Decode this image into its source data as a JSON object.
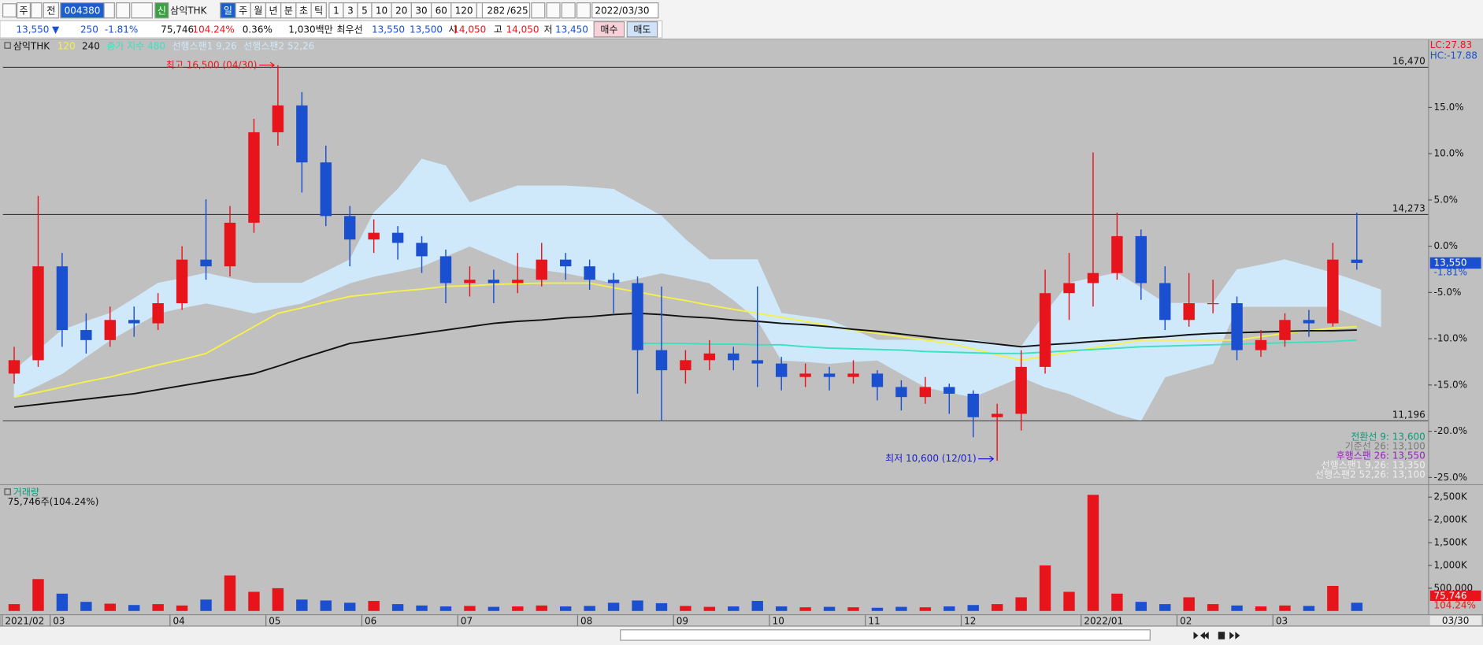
{
  "toolbar": {
    "period": "주",
    "market": "전",
    "code": "004380",
    "badge": "신",
    "name": "삼익THK",
    "intervals": [
      "일",
      "주",
      "월",
      "년",
      "분",
      "초",
      "틱"
    ],
    "minutes": [
      "1",
      "3",
      "5",
      "10",
      "20",
      "30",
      "60",
      "120"
    ],
    "count": "282",
    "total": "/625",
    "date": "2022/03/30"
  },
  "quote": {
    "price": "13,550",
    "arrow": "▼",
    "change": "250",
    "change_pct": "-1.81%",
    "volume": "75,746",
    "volume_pct": "104.24%",
    "turnover": "0.36%",
    "amount": "1,030백만",
    "best_label": "최우선",
    "ask": "13,550",
    "bid": "13,500",
    "open_label": "시",
    "open": "14,050",
    "high_label": "고",
    "high": "14,050",
    "low_label": "저",
    "low": "13,450",
    "buy": "매수",
    "sell": "매도"
  },
  "chart_data": [
    {
      "type": "candlestick",
      "title": "삼익THK",
      "corner": [
        "LC:27.83",
        "HC:-17.88"
      ],
      "up_color": "#e8141b",
      "down_color": "#1a4fd0",
      "ichimoku_cloud": true,
      "categories": [
        "2021/02",
        null,
        "03",
        null,
        null,
        null,
        null,
        "04",
        null,
        null,
        null,
        "05",
        null,
        null,
        null,
        "06",
        null,
        null,
        null,
        "07",
        null,
        null,
        null,
        null,
        "08",
        null,
        null,
        null,
        "09",
        null,
        null,
        null,
        "10",
        null,
        null,
        null,
        "11",
        null,
        null,
        null,
        "12",
        null,
        null,
        null,
        null,
        "2022/01",
        null,
        null,
        null,
        "02",
        null,
        null,
        null,
        "03",
        null,
        null,
        null,
        null
      ],
      "open": [
        11900,
        12100,
        13500,
        12550,
        12400,
        12700,
        12650,
        12950,
        13600,
        13500,
        14150,
        15500,
        15900,
        15050,
        14250,
        13900,
        14000,
        13850,
        13650,
        13250,
        13300,
        13250,
        13300,
        13600,
        13500,
        13300,
        13250,
        12250,
        11950,
        12100,
        12200,
        12100,
        12050,
        11850,
        11900,
        11850,
        11900,
        11700,
        11550,
        11700,
        11600,
        11250,
        11300,
        12000,
        13100,
        13250,
        13400,
        13950,
        13250,
        12700,
        12950,
        12950,
        12250,
        12400,
        12700,
        12650,
        13600,
        null
      ],
      "high": [
        12300,
        14550,
        13700,
        12800,
        12900,
        12900,
        13100,
        13800,
        14500,
        14400,
        15700,
        16500,
        16100,
        15300,
        14400,
        14200,
        14100,
        13950,
        13750,
        13500,
        13450,
        13700,
        13850,
        13700,
        13600,
        13400,
        13350,
        13200,
        12250,
        12400,
        12300,
        13200,
        12150,
        12050,
        12000,
        12100,
        11950,
        11800,
        11850,
        11750,
        11650,
        11450,
        12250,
        13450,
        13700,
        15200,
        14300,
        14050,
        13500,
        13400,
        13300,
        13050,
        12550,
        12800,
        12850,
        13850,
        14300,
        null
      ],
      "low": [
        11750,
        12000,
        12300,
        12200,
        12300,
        12450,
        12550,
        12850,
        13300,
        13350,
        14000,
        15300,
        14600,
        14100,
        13500,
        13700,
        13600,
        13400,
        12950,
        13050,
        12950,
        13100,
        13200,
        13300,
        13150,
        12800,
        11600,
        11196,
        11750,
        11950,
        11950,
        11700,
        11650,
        11700,
        11650,
        11750,
        11500,
        11350,
        11450,
        11300,
        10950,
        10600,
        11050,
        11900,
        12700,
        12900,
        13300,
        13000,
        12550,
        12600,
        12800,
        12100,
        12150,
        12300,
        12450,
        12600,
        13450,
        null
      ],
      "close": [
        12100,
        13500,
        12550,
        12400,
        12700,
        12650,
        12950,
        13600,
        13500,
        14150,
        15500,
        15900,
        15050,
        14250,
        13900,
        14000,
        13850,
        13650,
        13250,
        13300,
        13250,
        13300,
        13600,
        13500,
        13300,
        13250,
        12250,
        11950,
        12100,
        12200,
        12100,
        12050,
        11850,
        11900,
        11850,
        11900,
        11700,
        11550,
        11700,
        11600,
        11250,
        11300,
        12000,
        13100,
        13250,
        13400,
        13950,
        13250,
        12700,
        12950,
        12950,
        12250,
        12400,
        12700,
        12650,
        13600,
        13550,
        null
      ],
      "series": [
        {
          "name": "120",
          "color": "#f5f04a",
          "values": [
            11550,
            11620,
            11700,
            11780,
            11850,
            11940,
            12030,
            12110,
            12200,
            12400,
            12600,
            12800,
            12880,
            12970,
            13050,
            13090,
            13130,
            13160,
            13200,
            13210,
            13230,
            13240,
            13250,
            13250,
            13250,
            13180,
            13120,
            13050,
            12990,
            12920,
            12860,
            12800,
            12740,
            12680,
            12610,
            12550,
            12500,
            12450,
            12400,
            12350,
            12270,
            12180,
            12100,
            12160,
            12220,
            12280,
            12340,
            12400,
            12400,
            12400,
            12400,
            12400,
            12450,
            12500,
            12540,
            12580,
            12600,
            null
          ]
        },
        {
          "name": "240",
          "color": "#111111",
          "values": [
            11400,
            11440,
            11480,
            11520,
            11560,
            11600,
            11660,
            11720,
            11780,
            11840,
            11900,
            12010,
            12130,
            12240,
            12350,
            12400,
            12450,
            12500,
            12550,
            12600,
            12650,
            12680,
            12700,
            12730,
            12750,
            12780,
            12800,
            12780,
            12750,
            12730,
            12700,
            12680,
            12650,
            12630,
            12600,
            12560,
            12530,
            12490,
            12450,
            12410,
            12380,
            12340,
            12300,
            12330,
            12350,
            12380,
            12400,
            12430,
            12450,
            12480,
            12500,
            12510,
            12520,
            12530,
            12540,
            12540,
            12550,
            null
          ]
        },
        {
          "name": "종가 지수 480",
          "color": "#3de0c0",
          "values": [
            null,
            null,
            null,
            null,
            null,
            null,
            null,
            null,
            null,
            null,
            null,
            null,
            null,
            null,
            null,
            null,
            null,
            null,
            null,
            null,
            null,
            null,
            null,
            null,
            null,
            null,
            12350,
            12350,
            12350,
            12340,
            12340,
            12330,
            12330,
            12300,
            12280,
            12270,
            12260,
            12250,
            12230,
            12220,
            12210,
            12200,
            12200,
            12220,
            12240,
            12260,
            12280,
            12300,
            12310,
            12320,
            12330,
            12340,
            12350,
            12360,
            12370,
            12380,
            12400,
            null
          ]
        },
        {
          "name": "선행스팬1 9,26",
          "color": "#cfe9fb",
          "values": [
            11950,
            12250,
            12550,
            12680,
            12800,
            13020,
            13250,
            13320,
            13400,
            13320,
            13250,
            13250,
            13250,
            13420,
            13600,
            14300,
            14650,
            15100,
            15000,
            14450,
            14580,
            14700,
            14700,
            14700,
            14680,
            14650,
            14450,
            14250,
            13900,
            13600,
            13600,
            13600,
            12800,
            12750,
            12700,
            12550,
            12400,
            12400,
            12400,
            12400,
            12400,
            12350,
            12300,
            12800,
            13250,
            13330,
            13400,
            13180,
            12950,
            12950,
            12950,
            13450,
            13520,
            13600,
            13500,
            13400,
            13280,
            13150
          ]
        },
        {
          "name": "선행스팬2 52,26",
          "color": "#cfe9fb",
          "values": [
            11550,
            11720,
            11900,
            12150,
            12400,
            12600,
            12800,
            12880,
            12950,
            12880,
            12800,
            12880,
            12950,
            13100,
            13250,
            13350,
            13420,
            13500,
            13650,
            13800,
            13650,
            13500,
            13450,
            13400,
            13330,
            13250,
            13320,
            13400,
            13330,
            13250,
            13000,
            12700,
            12100,
            12080,
            12050,
            12080,
            12100,
            11900,
            11700,
            11620,
            11550,
            11700,
            11850,
            11700,
            11600,
            11450,
            11300,
            11200,
            11850,
            11950,
            12050,
            12900,
            12900,
            12900,
            12900,
            12900,
            12750,
            12600
          ]
        }
      ],
      "levels": [
        {
          "value": 16470,
          "label": "16,470"
        },
        {
          "value": 14273,
          "label": "14,273"
        },
        {
          "value": 11196,
          "label": "11,196"
        }
      ],
      "annotations": [
        {
          "text": "최고 16,500 (04/30)",
          "value": 16500,
          "color": "#e8141b"
        },
        {
          "text": "최저 10,600 (12/01)",
          "value": 10600,
          "color": "#1a1ad0"
        }
      ],
      "ichimoku_values": [
        {
          "text": "전환선 9: 13,600",
          "color": "#0a9a7a"
        },
        {
          "text": "기준선 26: 13,100",
          "color": "#7a7a7a"
        },
        {
          "text": "후행스팬 26: 13,550",
          "color": "#9a20c0"
        },
        {
          "text": "선행스팬1 9,26: 13,350",
          "color": "#eeeeee"
        },
        {
          "text": "선행스팬2 52,26: 13,100",
          "color": "#eeeeee"
        }
      ],
      "last": {
        "value": 13550,
        "label": "13,550",
        "change": "-1.81%"
      },
      "ylim": [
        10250,
        16880
      ],
      "yticks": [
        {
          "value": 15870,
          "label": "15.0%"
        },
        {
          "value": 15180,
          "label": "10.0%"
        },
        {
          "value": 14490,
          "label": "5.0%"
        },
        {
          "value": 13800,
          "label": "0.0%"
        },
        {
          "value": 13110,
          "label": "-5.0%"
        },
        {
          "value": 12420,
          "label": "-10.0%"
        },
        {
          "value": 11730,
          "label": "-15.0%"
        },
        {
          "value": 11040,
          "label": "-20.0%"
        },
        {
          "value": 10350,
          "label": "-25.0%"
        }
      ],
      "cursor_date": "03/30"
    },
    {
      "type": "bar",
      "title": "거래량",
      "subtitle": "75,746주(104.24%)",
      "values": [
        150000,
        700000,
        380000,
        200000,
        160000,
        130000,
        150000,
        120000,
        250000,
        780000,
        420000,
        500000,
        250000,
        230000,
        180000,
        220000,
        150000,
        120000,
        100000,
        110000,
        90000,
        100000,
        120000,
        100000,
        110000,
        180000,
        230000,
        170000,
        110000,
        90000,
        100000,
        220000,
        100000,
        80000,
        90000,
        80000,
        70000,
        90000,
        80000,
        100000,
        130000,
        150000,
        300000,
        1000000,
        420000,
        2550000,
        380000,
        200000,
        150000,
        300000,
        150000,
        120000,
        100000,
        120000,
        110000,
        550000,
        180000,
        null
      ],
      "last": {
        "value": 75746,
        "label": "75,746",
        "pct": "104.24%"
      },
      "ylim": [
        0,
        2700000
      ],
      "yticks": [
        {
          "value": 500000,
          "label": "500,000"
        },
        {
          "value": 1000000,
          "label": "1,000K"
        },
        {
          "value": 1500000,
          "label": "1,500K"
        },
        {
          "value": 2000000,
          "label": "2,000K"
        },
        {
          "value": 2500000,
          "label": "2,500K"
        }
      ]
    }
  ]
}
